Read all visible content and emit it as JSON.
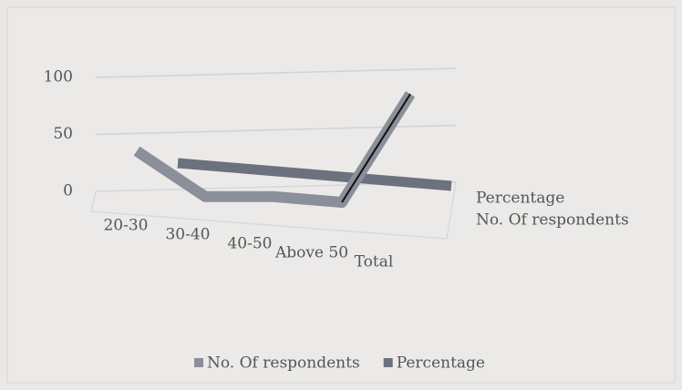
{
  "chart_data": {
    "type": "line3d",
    "categories": [
      "20-30",
      "30-40",
      "40-50",
      "Above 50",
      "Total"
    ],
    "series": [
      {
        "name": "No. Of respondents",
        "color": "#8b8f99",
        "values": [
          45,
          5,
          5,
          0,
          95
        ]
      },
      {
        "name": "Percentage",
        "color": "#6c717d",
        "values": [
          20,
          15,
          10,
          5,
          0
        ]
      }
    ],
    "ylim": [
      0,
      100
    ],
    "yticks": [
      0,
      50,
      100
    ],
    "grid": true,
    "legend": "bottom"
  }
}
